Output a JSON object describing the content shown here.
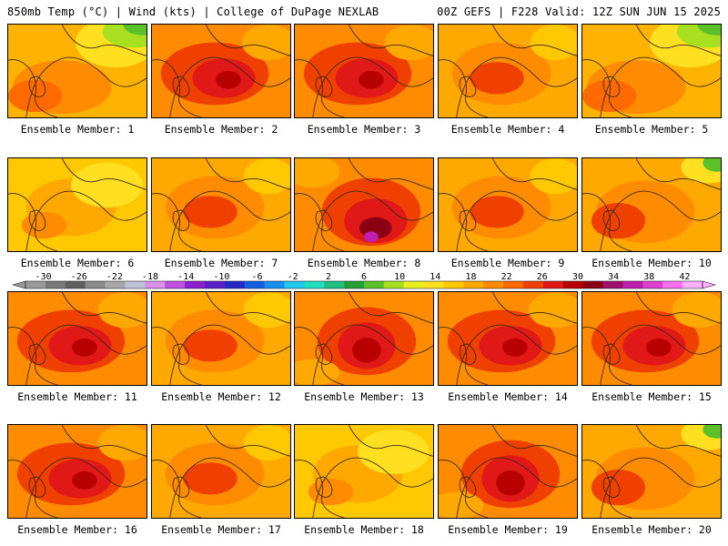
{
  "header": {
    "left": "850mb Temp (°C) | Wind (kts) | College of DuPage NEXLAB",
    "right": "00Z GEFS | F228 Valid: 12Z SUN JUN 15 2025"
  },
  "members": [
    {
      "label": "Ensemble Member: 1",
      "theme": "yellow-green-ne"
    },
    {
      "label": "Ensemble Member: 2",
      "theme": "red"
    },
    {
      "label": "Ensemble Member: 3",
      "theme": "red"
    },
    {
      "label": "Ensemble Member: 4",
      "theme": "orange"
    },
    {
      "label": "Ensemble Member: 5",
      "theme": "yellow-green-ne"
    },
    {
      "label": "Ensemble Member: 6",
      "theme": "yellow"
    },
    {
      "label": "Ensemble Member: 7",
      "theme": "orange"
    },
    {
      "label": "Ensemble Member: 8",
      "theme": "dark-red-core"
    },
    {
      "label": "Ensemble Member: 9",
      "theme": "orange"
    },
    {
      "label": "Ensemble Member: 10",
      "theme": "orange-green-corner"
    },
    {
      "label": "Ensemble Member: 11",
      "theme": "red"
    },
    {
      "label": "Ensemble Member: 12",
      "theme": "orange"
    },
    {
      "label": "Ensemble Member: 13",
      "theme": "dark-red"
    },
    {
      "label": "Ensemble Member: 14",
      "theme": "red"
    },
    {
      "label": "Ensemble Member: 15",
      "theme": "red"
    },
    {
      "label": "Ensemble Member: 16",
      "theme": "red"
    },
    {
      "label": "Ensemble Member: 17",
      "theme": "orange"
    },
    {
      "label": "Ensemble Member: 18",
      "theme": "yellow"
    },
    {
      "label": "Ensemble Member: 19",
      "theme": "dark-red"
    },
    {
      "label": "Ensemble Member: 20",
      "theme": "orange-green-corner"
    }
  ],
  "colorbar": {
    "ticks": [
      "-30",
      "-26",
      "-22",
      "-18",
      "-14",
      "-10",
      "-6",
      "-2",
      "2",
      "6",
      "10",
      "14",
      "18",
      "22",
      "26",
      "30",
      "34",
      "38",
      "42"
    ],
    "colors": [
      "#9a9a9a",
      "#7a7a7a",
      "#606060",
      "#8a8a8a",
      "#a8a8a8",
      "#c0c0d8",
      "#d890e8",
      "#c050e0",
      "#8e1fd0",
      "#5a20c8",
      "#2828c8",
      "#1460e0",
      "#1890f0",
      "#20c8f0",
      "#20e0c0",
      "#20c080",
      "#24a038",
      "#5cc028",
      "#a8e020",
      "#e8f020",
      "#ffe020",
      "#ffc800",
      "#ffa800",
      "#ff8c00",
      "#ff6a00",
      "#f04000",
      "#e01818",
      "#b80000",
      "#8c0014",
      "#a0106a",
      "#c020b0",
      "#e040d0",
      "#ff70f0",
      "#ffb0ff"
    ]
  }
}
